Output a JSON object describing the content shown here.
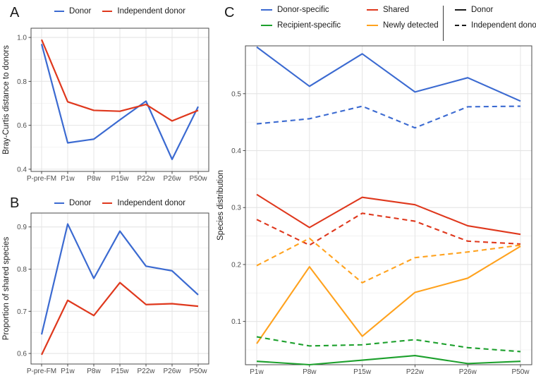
{
  "palette": {
    "blue": "#3B6AD1",
    "red": "#DF381D",
    "green": "#1CA02C",
    "orange": "#FFA21E",
    "black": "#1a1a1a"
  },
  "panels": {
    "a": {
      "label": "A"
    },
    "b": {
      "label": "B"
    },
    "c": {
      "label": "C"
    }
  },
  "chart_data": [
    {
      "id": "bray-curtis",
      "panel": "A",
      "type": "line",
      "ylabel": "Bray-Curtis distance to donors",
      "xlabel": "",
      "categories": [
        "P-pre-FM",
        "P1w",
        "P8w",
        "P15w",
        "P22w",
        "P26w",
        "P50w"
      ],
      "yticks": [
        "0.4",
        "0.6",
        "0.8",
        "1.0"
      ],
      "ylim": [
        0.39,
        1.042
      ],
      "grid": "major+minor",
      "legend_position": "top",
      "legend": [
        {
          "label": "Donor",
          "color": "blue",
          "dash": "solid"
        },
        {
          "label": "Independent donor",
          "color": "red",
          "dash": "solid"
        }
      ],
      "series": [
        {
          "name": "Donor",
          "color": "blue",
          "dash": "solid",
          "values": [
            0.97,
            0.52,
            0.537,
            0.625,
            0.71,
            0.445,
            0.685
          ]
        },
        {
          "name": "Independent donor",
          "color": "red",
          "dash": "solid",
          "values": [
            0.99,
            0.707,
            0.668,
            0.664,
            0.695,
            0.62,
            0.668
          ]
        }
      ]
    },
    {
      "id": "shared-species",
      "panel": "B",
      "type": "line",
      "ylabel": "Proportion of shared species",
      "xlabel": "",
      "categories": [
        "P-pre-FM",
        "P1w",
        "P8w",
        "P15w",
        "P22w",
        "P26w",
        "P50w"
      ],
      "yticks": [
        "0.6",
        "0.7",
        "0.8",
        "0.9"
      ],
      "ylim": [
        0.575,
        0.933
      ],
      "grid": "major+minor",
      "legend_position": "top",
      "legend": [
        {
          "label": "Donor",
          "color": "blue",
          "dash": "solid"
        },
        {
          "label": "Independent donor",
          "color": "red",
          "dash": "solid"
        }
      ],
      "series": [
        {
          "name": "Donor",
          "color": "blue",
          "dash": "solid",
          "values": [
            0.645,
            0.907,
            0.778,
            0.89,
            0.807,
            0.796,
            0.739
          ]
        },
        {
          "name": "Independent donor",
          "color": "red",
          "dash": "solid",
          "values": [
            0.597,
            0.726,
            0.69,
            0.768,
            0.716,
            0.718,
            0.712
          ]
        }
      ]
    },
    {
      "id": "species-distribution",
      "panel": "C",
      "type": "line",
      "ylabel": "Species distribution",
      "xlabel": "",
      "categories": [
        "P1w",
        "P8w",
        "P15w",
        "P22w",
        "P26w",
        "P50w"
      ],
      "yticks": [
        "0.1",
        "0.2",
        "0.3",
        "0.4",
        "0.5"
      ],
      "ylim": [
        0.024,
        0.584
      ],
      "grid": "major+minor",
      "legend_position": "top",
      "legend_colors": [
        {
          "label": "Donor-specific",
          "color": "blue"
        },
        {
          "label": "Recipient-specific",
          "color": "green"
        },
        {
          "label": "Shared",
          "color": "red"
        },
        {
          "label": "Newly detected",
          "color": "orange"
        }
      ],
      "legend_linetypes": [
        {
          "label": "Donor",
          "dash": "solid"
        },
        {
          "label": "Independent donor",
          "dash": "dashed"
        }
      ],
      "series": [
        {
          "name": "Donor-specific (Donor)",
          "color": "blue",
          "dash": "solid",
          "values": [
            0.582,
            0.513,
            0.57,
            0.503,
            0.528,
            0.487
          ]
        },
        {
          "name": "Donor-specific (Independent donor)",
          "color": "blue",
          "dash": "dashed",
          "values": [
            0.447,
            0.456,
            0.478,
            0.44,
            0.477,
            0.478
          ]
        },
        {
          "name": "Shared (Donor)",
          "color": "red",
          "dash": "solid",
          "values": [
            0.323,
            0.265,
            0.318,
            0.305,
            0.268,
            0.253
          ]
        },
        {
          "name": "Shared (Independent donor)",
          "color": "red",
          "dash": "dashed",
          "values": [
            0.279,
            0.234,
            0.29,
            0.276,
            0.241,
            0.236
          ]
        },
        {
          "name": "Newly detected (Donor)",
          "color": "orange",
          "dash": "solid",
          "values": [
            0.061,
            0.196,
            0.074,
            0.151,
            0.176,
            0.232
          ]
        },
        {
          "name": "Newly detected (Independent donor)",
          "color": "orange",
          "dash": "dashed",
          "values": [
            0.198,
            0.246,
            0.168,
            0.212,
            0.222,
            0.234
          ]
        },
        {
          "name": "Recipient-specific (Donor)",
          "color": "green",
          "dash": "solid",
          "values": [
            0.03,
            0.024,
            0.032,
            0.04,
            0.026,
            0.03
          ]
        },
        {
          "name": "Recipient-specific (Independent donor)",
          "color": "green",
          "dash": "dashed",
          "values": [
            0.073,
            0.057,
            0.059,
            0.068,
            0.054,
            0.047
          ]
        }
      ]
    }
  ]
}
